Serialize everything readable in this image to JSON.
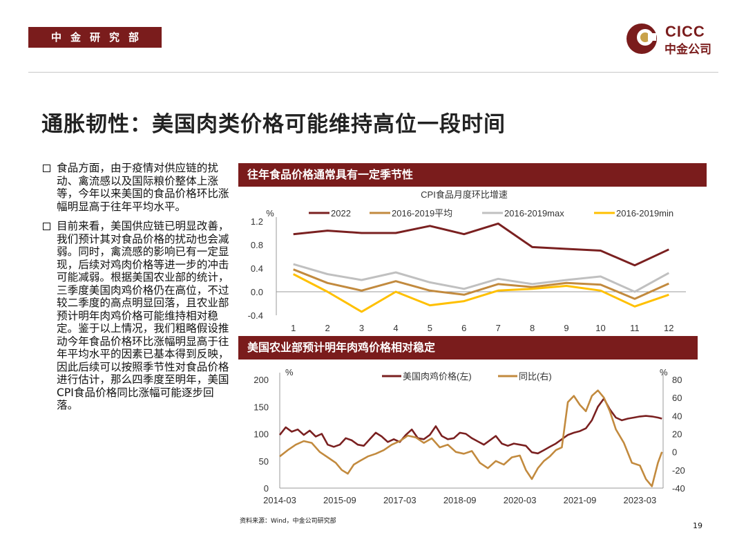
{
  "header": {
    "department": "中金研究部",
    "logo_en": "CICC",
    "logo_cn": "中金公司"
  },
  "title": "通胀韧性：美国肉类价格可能维持高位一段时间",
  "bullets": [
    "食品方面，由于疫情对供应链的扰动、禽流感以及国际粮价整体上涨等，今年以来美国的食品价格环比涨幅明显高于往年平均水平。",
    "目前来看，美国供应链已明显改善，我们预计其对食品价格的扰动也会减弱。同时，禽流感的影响已有一定显现，后续对鸡肉价格等进一步的冲击可能减弱。根据美国农业部的统计，三季度美国肉鸡价格仍在高位，不过较二季度的高点明显回落，且农业部预计明年肉鸡价格可能维持相对稳定。鉴于以上情况，我们粗略假设推动今年食品价格环比涨幅明显高于往年平均水平的因素已基本得到反映，因此后续可以按照季节性对食品价格进行估计，那么四季度至明年，美国CPI食品价格同比涨幅可能逐步回落。"
  ],
  "panel1": {
    "header": "往年食品价格通常具有一定季节性"
  },
  "panel2": {
    "header": "美国农业部预计明年肉鸡价格相对稳定"
  },
  "chart_data": [
    {
      "type": "line",
      "title": "CPI食品月度环比增速",
      "ylabel": "%",
      "ylim": [
        -0.4,
        1.2
      ],
      "yticks": [
        1.2,
        0.8,
        0.4,
        0.0,
        -0.4
      ],
      "ytick_labels": [
        "1.2",
        "0.8",
        "0.4",
        "0.0",
        "-0.4"
      ],
      "categories": [
        "1",
        "2",
        "3",
        "4",
        "5",
        "6",
        "7",
        "8",
        "9",
        "10",
        "11",
        "12"
      ],
      "legend_position": "top",
      "series": [
        {
          "name": "2022",
          "color": "#7a2020",
          "values": [
            0.98,
            1.04,
            1.0,
            1.0,
            1.12,
            0.98,
            1.16,
            0.76,
            0.73,
            0.7,
            0.45,
            0.72
          ]
        },
        {
          "name": "2016-2019平均",
          "color": "#c28a3e",
          "values": [
            0.38,
            0.15,
            0.02,
            0.18,
            0.02,
            -0.05,
            0.13,
            0.08,
            0.15,
            0.12,
            -0.12,
            0.14
          ]
        },
        {
          "name": "2016-2019max",
          "color": "#c0c0c0",
          "values": [
            0.47,
            0.3,
            0.2,
            0.33,
            0.16,
            0.05,
            0.22,
            0.13,
            0.2,
            0.26,
            0.0,
            0.32
          ]
        },
        {
          "name": "2016-2019min",
          "color": "#ffc000",
          "values": [
            0.3,
            0.0,
            -0.34,
            0.0,
            -0.23,
            -0.16,
            0.02,
            0.05,
            0.1,
            0.02,
            -0.25,
            -0.05
          ]
        }
      ]
    },
    {
      "type": "line",
      "ylabel_left": "%",
      "ylabel_right": "%",
      "ylim_left": [
        0,
        200
      ],
      "ylim_right": [
        -40,
        80
      ],
      "yticks_left": [
        200,
        150,
        100,
        50,
        0
      ],
      "ytick_labels_left": [
        "200",
        "150",
        "100",
        "50",
        "0"
      ],
      "yticks_right": [
        80,
        60,
        40,
        20,
        0,
        -20,
        -40
      ],
      "ytick_labels_right": [
        "80",
        "60",
        "40",
        "20",
        "0",
        "-20",
        "-40"
      ],
      "x_range": [
        2014.0,
        2023.58
      ],
      "x_ticks": [
        2014.0,
        2015.5,
        2017.0,
        2018.5,
        2020.0,
        2021.5,
        2023.0
      ],
      "x_tick_labels": [
        "2014-03",
        "2015-09",
        "2017-03",
        "2018-09",
        "2020-03",
        "2021-09",
        "2023-03"
      ],
      "legend_position": "top",
      "series": [
        {
          "name": "美国肉鸡价格(左)",
          "axis": "left",
          "color": "#7a2020",
          "x": [
            2014.0,
            2014.15,
            2014.3,
            2014.45,
            2014.6,
            2014.75,
            2014.9,
            2015.05,
            2015.2,
            2015.35,
            2015.5,
            2015.65,
            2015.8,
            2015.95,
            2016.1,
            2016.25,
            2016.4,
            2016.55,
            2016.7,
            2016.85,
            2017.0,
            2017.15,
            2017.3,
            2017.45,
            2017.6,
            2017.75,
            2017.9,
            2018.05,
            2018.2,
            2018.35,
            2018.5,
            2018.65,
            2018.8,
            2018.95,
            2019.1,
            2019.25,
            2019.4,
            2019.55,
            2019.7,
            2019.85,
            2020.0,
            2020.15,
            2020.3,
            2020.45,
            2020.6,
            2020.75,
            2020.9,
            2021.05,
            2021.2,
            2021.35,
            2021.5,
            2021.65,
            2021.8,
            2021.95,
            2022.1,
            2022.25,
            2022.4,
            2022.55,
            2022.7,
            2022.85,
            2023.0,
            2023.15,
            2023.3,
            2023.45,
            2023.55
          ],
          "values": [
            98,
            112,
            104,
            108,
            98,
            106,
            95,
            100,
            80,
            76,
            80,
            92,
            88,
            80,
            78,
            90,
            102,
            95,
            85,
            90,
            85,
            98,
            108,
            92,
            90,
            98,
            114,
            96,
            90,
            92,
            102,
            100,
            92,
            86,
            80,
            88,
            96,
            82,
            78,
            82,
            80,
            78,
            66,
            64,
            70,
            76,
            82,
            90,
            98,
            102,
            105,
            110,
            125,
            150,
            165,
            145,
            130,
            125,
            128,
            130,
            132,
            133,
            132,
            130,
            128
          ]
        },
        {
          "name": "同比(右)",
          "axis": "right",
          "color": "#c28a3e",
          "x": [
            2014.0,
            2014.2,
            2014.4,
            2014.6,
            2014.8,
            2015.0,
            2015.2,
            2015.4,
            2015.55,
            2015.7,
            2015.85,
            2016.0,
            2016.2,
            2016.4,
            2016.6,
            2016.8,
            2017.0,
            2017.2,
            2017.4,
            2017.6,
            2017.8,
            2018.0,
            2018.2,
            2018.4,
            2018.6,
            2018.8,
            2019.0,
            2019.2,
            2019.4,
            2019.6,
            2019.8,
            2020.0,
            2020.15,
            2020.3,
            2020.45,
            2020.6,
            2020.75,
            2020.9,
            2021.05,
            2021.2,
            2021.35,
            2021.5,
            2021.65,
            2021.8,
            2021.95,
            2022.1,
            2022.25,
            2022.4,
            2022.6,
            2022.8,
            2023.0,
            2023.15,
            2023.3,
            2023.45,
            2023.55
          ],
          "values": [
            -5,
            2,
            8,
            12,
            10,
            0,
            -6,
            -12,
            -20,
            -24,
            -14,
            -10,
            -5,
            -2,
            2,
            8,
            12,
            18,
            16,
            10,
            15,
            5,
            8,
            0,
            -2,
            1,
            -12,
            -18,
            -10,
            -14,
            -6,
            -4,
            -20,
            -30,
            -18,
            -10,
            -5,
            2,
            5,
            55,
            62,
            52,
            45,
            62,
            68,
            60,
            45,
            25,
            10,
            -12,
            -15,
            -30,
            -38,
            -12,
            0
          ]
        }
      ]
    }
  ],
  "source": "资料来源：Wind，中金公司研究部",
  "page_number": "19"
}
